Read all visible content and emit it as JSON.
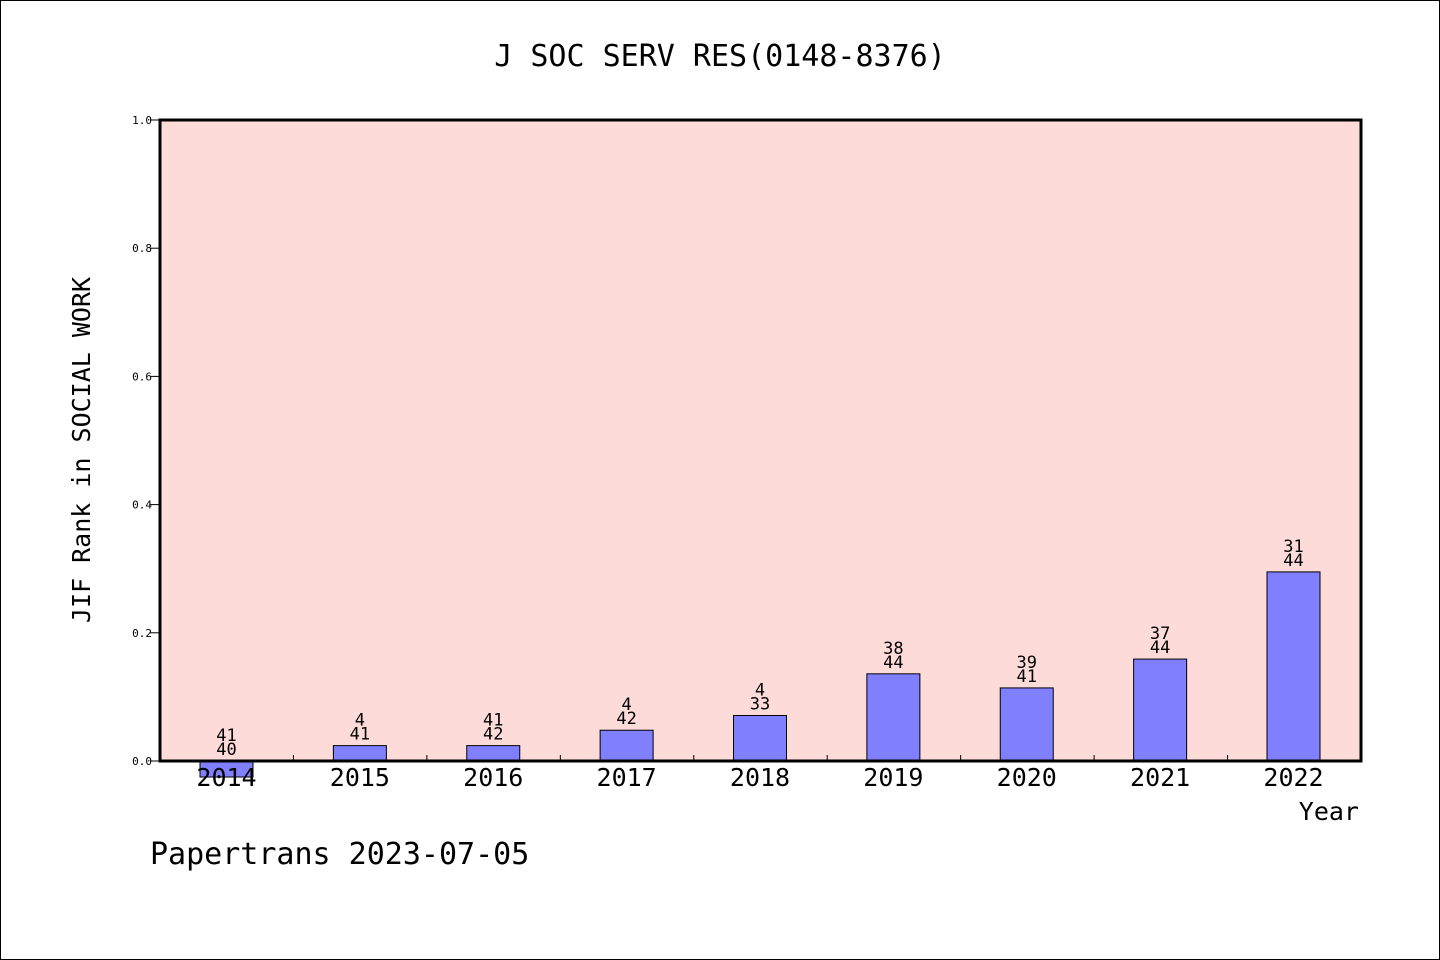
{
  "chart_data": {
    "type": "bar",
    "title": "J SOC SERV RES(0148-8376)",
    "xlabel": "Year",
    "ylabel": "JIF Rank in SOCIAL WORK",
    "categories": [
      "2014",
      "2015",
      "2016",
      "2017",
      "2018",
      "2019",
      "2020",
      "2021",
      "2022"
    ],
    "values": [
      -0.025,
      0.024,
      0.024,
      0.048,
      0.071,
      0.136,
      0.114,
      0.159,
      0.295
    ],
    "bar_labels": [
      {
        "top": "41",
        "bottom": "40"
      },
      {
        "top": "4",
        "bottom": "41"
      },
      {
        "top": "41",
        "bottom": "42"
      },
      {
        "top": "4",
        "bottom": "42"
      },
      {
        "top": "4",
        "bottom": "33"
      },
      {
        "top": "38",
        "bottom": "44"
      },
      {
        "top": "39",
        "bottom": "41"
      },
      {
        "top": "37",
        "bottom": "44"
      },
      {
        "top": "31",
        "bottom": "44"
      }
    ],
    "ylim": [
      0,
      1.0
    ],
    "yticks": [
      "0.0",
      "0.2",
      "0.4",
      "0.6",
      "0.8",
      "1.0"
    ],
    "grid": false,
    "colors": {
      "plot_background": "#fddbd8",
      "bar_fill": "#8080ff",
      "bar_stroke": "#000000"
    }
  },
  "footer": {
    "text": "Papertrans 2023-07-05"
  }
}
